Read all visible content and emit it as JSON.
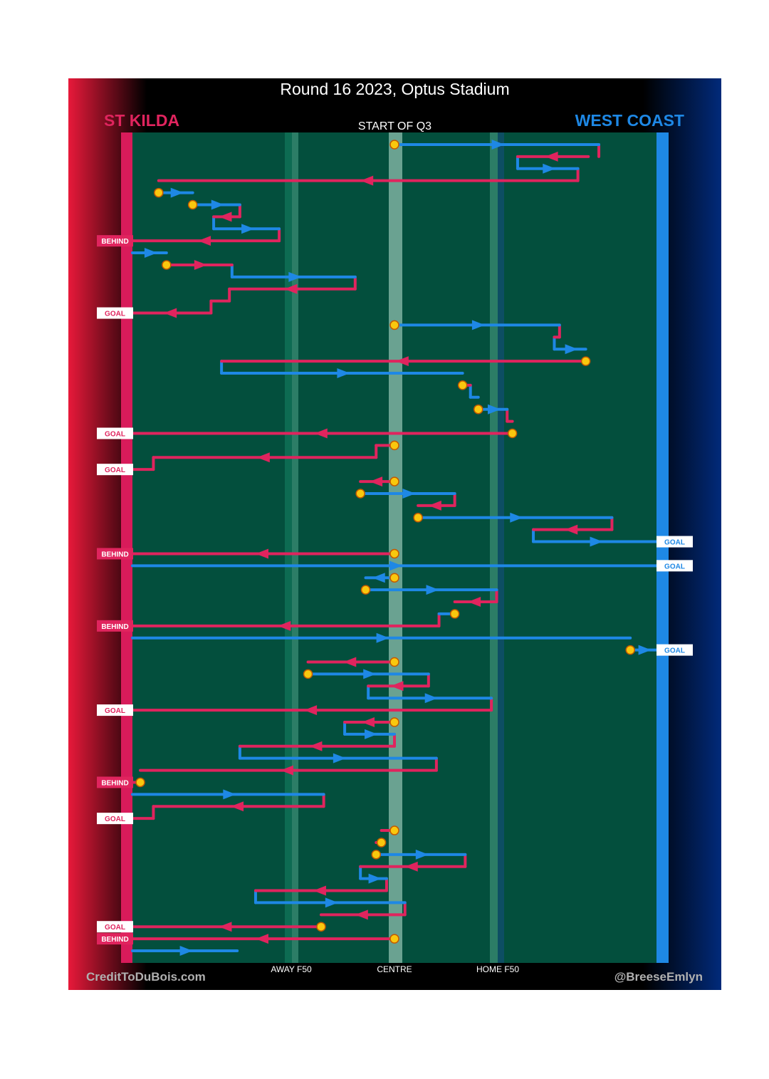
{
  "chart_data": {
    "type": "flow",
    "title": "Round 16 2023, Optus Stadium",
    "home_team": "ST KILDA",
    "away_team": "WEST COAST",
    "period_label": "START OF Q3",
    "x_axis": {
      "min": 0,
      "max": 100,
      "ticks": [
        {
          "value": 30.3,
          "label": "AWAY F50"
        },
        {
          "value": 50,
          "label": "CENTRE"
        },
        {
          "value": 69.7,
          "label": "HOME F50"
        }
      ]
    },
    "colors": {
      "home": "#e0245e",
      "away": "#1e88e5",
      "field": "#034f3d",
      "stoppage": "#f9c80e"
    },
    "credits": {
      "left": "CreditToDuBois.com",
      "right": "@BreeseEmlyn"
    },
    "chains": [
      {
        "team": "away",
        "start": 50,
        "segments": [
          [
            50,
            89
          ]
        ]
      },
      {
        "team": "home",
        "segments": [
          [
            87,
            73.5
          ]
        ]
      },
      {
        "team": "away",
        "segments": [
          [
            73.5,
            85
          ]
        ]
      },
      {
        "team": "home",
        "segments": [
          [
            85,
            5
          ]
        ],
        "end_stoppage": true
      },
      {
        "team": "away",
        "start": 5,
        "segments": [
          [
            5,
            11.5
          ]
        ],
        "end_stoppage": true
      },
      {
        "team": "away",
        "start": 11.5,
        "segments": [
          [
            11.5,
            20.5
          ]
        ]
      },
      {
        "team": "home",
        "segments": [
          [
            20.5,
            15.5
          ]
        ]
      },
      {
        "team": "away",
        "segments": [
          [
            15.5,
            28
          ]
        ]
      },
      {
        "team": "home",
        "segments": [
          [
            28,
            0
          ]
        ],
        "result": "BEHIND",
        "result_team": "home"
      },
      {
        "team": "away",
        "segments": [
          [
            0,
            6.5
          ]
        ],
        "end_stoppage": true
      },
      {
        "team": "home",
        "start": 6.5,
        "segments": [
          [
            6.5,
            19
          ]
        ]
      },
      {
        "team": "away",
        "segments": [
          [
            19,
            42.5
          ]
        ]
      },
      {
        "team": "home",
        "segments": [
          [
            42.5,
            18.5
          ]
        ]
      },
      {
        "team": "home",
        "segments": [
          [
            18.5,
            15
          ]
        ]
      },
      {
        "team": "home",
        "segments": [
          [
            15,
            0
          ]
        ],
        "result": "GOAL",
        "result_team": "home"
      },
      {
        "team": "away",
        "start": 50,
        "segments": [
          [
            50,
            81.5
          ]
        ]
      },
      {
        "team": "home",
        "segments": [
          [
            81.5,
            80.5
          ]
        ]
      },
      {
        "team": "away",
        "segments": [
          [
            80.5,
            86.5
          ]
        ],
        "end_stoppage": true
      },
      {
        "team": "home",
        "start": 86.5,
        "segments": [
          [
            86.5,
            17
          ]
        ]
      },
      {
        "team": "away",
        "segments": [
          [
            17,
            63
          ]
        ],
        "end_stoppage": true
      },
      {
        "team": "home",
        "start": 63,
        "segments": [
          [
            63,
            64.5
          ]
        ]
      },
      {
        "team": "away",
        "segments": [
          [
            64.5,
            66
          ]
        ],
        "end_stoppage": true
      },
      {
        "team": "away",
        "start": 66,
        "segments": [
          [
            66,
            71.5
          ]
        ]
      },
      {
        "team": "home",
        "segments": [
          [
            71.5,
            72.5
          ]
        ],
        "end_stoppage": true
      },
      {
        "team": "home",
        "start": 72.5,
        "segments": [
          [
            72.5,
            0
          ]
        ],
        "result": "GOAL",
        "result_team": "home"
      },
      {
        "team": "home",
        "start": 50,
        "segments": [
          [
            50,
            46.5
          ]
        ]
      },
      {
        "team": "home",
        "segments": [
          [
            46.5,
            4
          ]
        ]
      },
      {
        "team": "home",
        "segments": [
          [
            4,
            0
          ]
        ],
        "start_stoppage": true,
        "result": "GOAL",
        "result_team": "home"
      },
      {
        "team": "home",
        "start": 50,
        "segments": [
          [
            50,
            43.5
          ]
        ],
        "end_stoppage": true
      },
      {
        "team": "away",
        "start": 43.5,
        "segments": [
          [
            43.5,
            61.5
          ]
        ]
      },
      {
        "team": "home",
        "segments": [
          [
            61.5,
            54.5
          ]
        ]
      },
      {
        "team": "away",
        "start": 54.5,
        "segments": [
          [
            54.5,
            91.5
          ]
        ]
      },
      {
        "team": "home",
        "segments": [
          [
            91.5,
            76.5
          ]
        ]
      },
      {
        "team": "away",
        "segments": [
          [
            76.5,
            100
          ]
        ],
        "result": "GOAL",
        "result_team": "away"
      },
      {
        "team": "home",
        "start": 50,
        "segments": [
          [
            50,
            0
          ]
        ],
        "result": "BEHIND",
        "result_team": "home"
      },
      {
        "team": "away",
        "segments": [
          [
            0,
            100
          ]
        ],
        "result": "GOAL",
        "result_team": "away"
      },
      {
        "team": "away",
        "start": 50,
        "segments": [
          [
            50,
            44.5
          ]
        ],
        "end_stoppage": true
      },
      {
        "team": "away",
        "start": 44.5,
        "segments": [
          [
            44.5,
            69.5
          ]
        ]
      },
      {
        "team": "home",
        "segments": [
          [
            69.5,
            61.5
          ]
        ],
        "end_stoppage": true
      },
      {
        "team": "away",
        "start": 61.5,
        "segments": [
          [
            61.5,
            58.5
          ]
        ]
      },
      {
        "team": "home",
        "segments": [
          [
            58.5,
            0
          ]
        ],
        "start_stoppage": true,
        "result": "BEHIND",
        "result_team": "home"
      },
      {
        "team": "away",
        "segments": [
          [
            0,
            95
          ]
        ],
        "end_stoppage": true
      },
      {
        "team": "away",
        "start": 95,
        "segments": [
          [
            95,
            100
          ]
        ],
        "result": "GOAL",
        "result_team": "away"
      },
      {
        "team": "home",
        "start": 50,
        "segments": [
          [
            50,
            33.5
          ]
        ],
        "end_stoppage": true
      },
      {
        "team": "away",
        "start": 33.5,
        "segments": [
          [
            33.5,
            56.5
          ]
        ]
      },
      {
        "team": "home",
        "segments": [
          [
            56.5,
            45
          ]
        ]
      },
      {
        "team": "away",
        "segments": [
          [
            45,
            68.5
          ]
        ]
      },
      {
        "team": "home",
        "segments": [
          [
            68.5,
            0
          ]
        ],
        "result": "GOAL",
        "result_team": "home"
      },
      {
        "team": "home",
        "start": 50,
        "segments": [
          [
            50,
            40.5
          ]
        ]
      },
      {
        "team": "away",
        "segments": [
          [
            40.5,
            50
          ]
        ]
      },
      {
        "team": "home",
        "segments": [
          [
            50,
            20.5
          ]
        ]
      },
      {
        "team": "away",
        "segments": [
          [
            20.5,
            58
          ]
        ]
      },
      {
        "team": "home",
        "segments": [
          [
            58,
            1.5
          ]
        ],
        "end_stoppage": true
      },
      {
        "team": "home",
        "start": 1.5,
        "segments": [
          [
            1.5,
            0
          ]
        ],
        "result": "BEHIND",
        "result_team": "home"
      },
      {
        "team": "away",
        "segments": [
          [
            0,
            36.5
          ]
        ]
      },
      {
        "team": "home",
        "segments": [
          [
            36.5,
            4
          ]
        ]
      },
      {
        "team": "home",
        "segments": [
          [
            4,
            0
          ]
        ],
        "start_stoppage": true,
        "result": "GOAL",
        "result_team": "home"
      },
      {
        "team": "home",
        "start": 50,
        "segments": [
          [
            50,
            47.5
          ]
        ],
        "end_stoppage": true
      },
      {
        "team": "home",
        "start": 47.5,
        "segments": [
          [
            47.5,
            46.5
          ]
        ],
        "end_stoppage": true
      },
      {
        "team": "away",
        "start": 46.5,
        "segments": [
          [
            46.5,
            63.5
          ]
        ]
      },
      {
        "team": "home",
        "segments": [
          [
            63.5,
            43.5
          ]
        ]
      },
      {
        "team": "away",
        "segments": [
          [
            43.5,
            48.5
          ]
        ]
      },
      {
        "team": "home",
        "segments": [
          [
            48.5,
            23.5
          ]
        ]
      },
      {
        "team": "away",
        "segments": [
          [
            23.5,
            52
          ]
        ]
      },
      {
        "team": "home",
        "segments": [
          [
            52,
            36
          ]
        ],
        "end_stoppage": true
      },
      {
        "team": "home",
        "start": 36,
        "segments": [
          [
            36,
            0
          ]
        ],
        "result": "GOAL",
        "result_team": "home"
      },
      {
        "team": "home",
        "start": 50,
        "segments": [
          [
            50,
            0
          ]
        ],
        "result": "BEHIND",
        "result_team": "home"
      },
      {
        "team": "away",
        "segments": [
          [
            0,
            20
          ]
        ]
      }
    ]
  }
}
